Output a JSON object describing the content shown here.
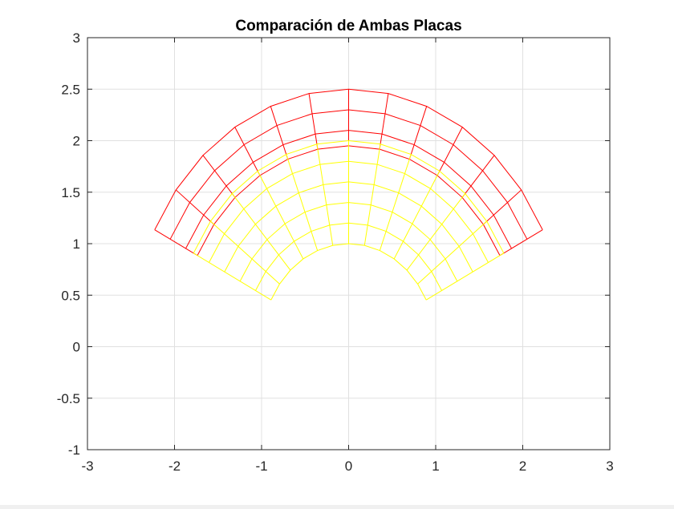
{
  "chart_data": {
    "type": "line",
    "title": "Comparación de Ambas Placas",
    "xlabel": "",
    "ylabel": "",
    "xlim": [
      -3,
      3
    ],
    "ylim": [
      -1,
      3
    ],
    "xticks": [
      -3,
      -2,
      -1,
      0,
      1,
      2,
      3
    ],
    "yticks": [
      -1,
      -0.5,
      0,
      0.5,
      1,
      1.5,
      2,
      2.5,
      3
    ],
    "xtick_labels": [
      "-3",
      "-2",
      "-1",
      "0",
      "1",
      "2",
      "3"
    ],
    "ytick_labels": [
      "-1",
      "-0.5",
      "0",
      "0.5",
      "1",
      "1.5",
      "2",
      "2.5",
      "3"
    ],
    "grid": true,
    "box": "axes",
    "series": [
      {
        "kind": "polar-mesh",
        "color": "#ff0000",
        "radii": [
          1.95,
          2.1,
          2.3,
          2.5
        ],
        "theta_start_deg": 27,
        "theta_end_deg": 153,
        "radial_divisions": 12,
        "angle_offset_deg": 0
      },
      {
        "kind": "polar-mesh",
        "color": "#ffff00",
        "radii": [
          1.0,
          1.2,
          1.4,
          1.6,
          1.8,
          2.0
        ],
        "theta_start_deg": 27,
        "theta_end_deg": 153,
        "radial_divisions": 12,
        "angle_offset_deg": 0
      }
    ]
  }
}
